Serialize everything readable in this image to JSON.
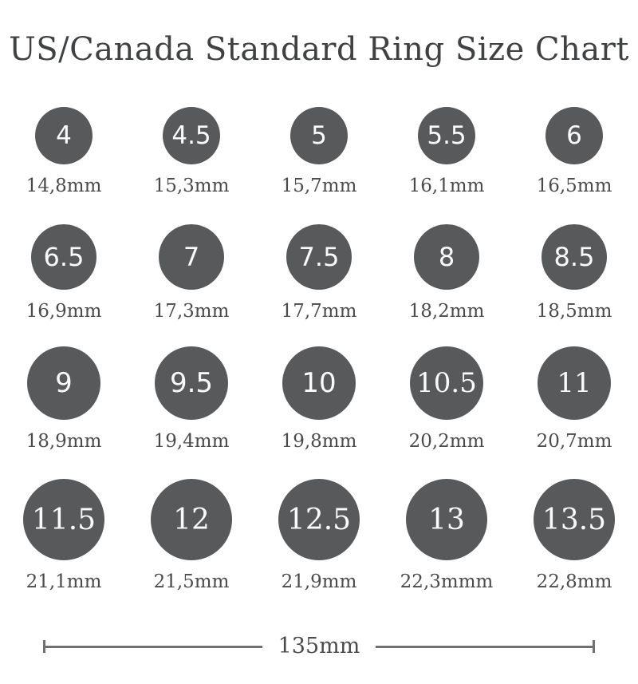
{
  "title": "US/Canada Standard Ring Size Chart",
  "colors": {
    "circle_fill": "#58595b",
    "circle_number": "#fbfbfb",
    "title_text": "#3f4142",
    "label_text": "#4a4b4c",
    "scale_line": "#6f7072",
    "background": "#ffffff"
  },
  "sizes": [
    {
      "size": "4",
      "diameter": "14,8mm"
    },
    {
      "size": "4.5",
      "diameter": "15,3mm"
    },
    {
      "size": "5",
      "diameter": "15,7mm"
    },
    {
      "size": "5.5",
      "diameter": "16,1mm"
    },
    {
      "size": "6",
      "diameter": "16,5mm"
    },
    {
      "size": "6.5",
      "diameter": "16,9mm"
    },
    {
      "size": "7",
      "diameter": "17,3mm"
    },
    {
      "size": "7.5",
      "diameter": "17,7mm"
    },
    {
      "size": "8",
      "diameter": "18,2mm"
    },
    {
      "size": "8.5",
      "diameter": "18,5mm"
    },
    {
      "size": "9",
      "diameter": "18,9mm"
    },
    {
      "size": "9.5",
      "diameter": "19,4mm"
    },
    {
      "size": "10",
      "diameter": "19,8mm"
    },
    {
      "size": "10.5",
      "diameter": "20,2mm"
    },
    {
      "size": "11",
      "diameter": "20,7mm"
    },
    {
      "size": "11.5",
      "diameter": "21,1mm"
    },
    {
      "size": "12",
      "diameter": "21,5mm"
    },
    {
      "size": "12.5",
      "diameter": "21,9mm"
    },
    {
      "size": "13",
      "diameter": "22,3mmm"
    },
    {
      "size": "13.5",
      "diameter": "22,8mm"
    }
  ],
  "scale": {
    "label": "135mm"
  },
  "chart_data": {
    "type": "table",
    "title": "US/Canada Standard Ring Size Chart",
    "columns": [
      "us_ring_size",
      "inner_diameter_mm"
    ],
    "us_ring_sizes": [
      4,
      4.5,
      5,
      5.5,
      6,
      6.5,
      7,
      7.5,
      8,
      8.5,
      9,
      9.5,
      10,
      10.5,
      11,
      11.5,
      12,
      12.5,
      13,
      13.5
    ],
    "inner_diameters_mm": [
      14.8,
      15.3,
      15.7,
      16.1,
      16.5,
      16.9,
      17.3,
      17.7,
      18.2,
      18.5,
      18.9,
      19.4,
      19.8,
      20.2,
      20.7,
      21.1,
      21.5,
      21.9,
      22.3,
      22.8
    ],
    "reference_scale_mm": 135,
    "layout": "4 rows x 5 columns of filled circles, circle size increases with ring size, dimension line with end ticks at bottom"
  }
}
